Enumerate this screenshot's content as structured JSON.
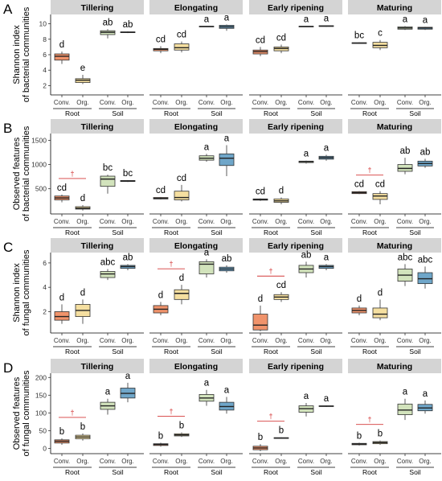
{
  "colors": {
    "root_conv": "#F0936B",
    "root_org": "#F5DFA0",
    "soil_conv": "#D2E3BC",
    "soil_org": "#6FA6C9",
    "strip_bg": "#D4D4D4",
    "dagger": "#D43A3A"
  },
  "chart_data": [
    {
      "type": "boxplot",
      "panel_label": "A",
      "ylabel": "Shannon index of bacterial communities",
      "ylim": [
        0.8,
        11.2
      ],
      "yticks": [
        2,
        4,
        6,
        8,
        10
      ],
      "ytick_labels": [
        "2",
        "4",
        "6",
        "8",
        "10"
      ],
      "facets": [
        {
          "title": "Tillering",
          "dagger": false,
          "boxes": [
            {
              "min": 4.8,
              "q1": 5.3,
              "median": 5.8,
              "q3": 6.1,
              "max": 6.4,
              "letter": "d"
            },
            {
              "min": 2.2,
              "q1": 2.4,
              "median": 2.7,
              "q3": 2.9,
              "max": 3.4,
              "letter": "e"
            },
            {
              "min": 8.1,
              "q1": 8.6,
              "median": 8.9,
              "q3": 9.1,
              "max": 9.3,
              "letter": "ab"
            },
            {
              "min": 8.8,
              "q1": 8.85,
              "median": 8.9,
              "q3": 8.95,
              "max": 9.0,
              "letter": "ab"
            }
          ]
        },
        {
          "title": "Elongating",
          "dagger": false,
          "boxes": [
            {
              "min": 6.2,
              "q1": 6.5,
              "median": 6.7,
              "q3": 6.8,
              "max": 7.1,
              "letter": "cd"
            },
            {
              "min": 6.3,
              "q1": 6.6,
              "median": 6.9,
              "q3": 7.4,
              "max": 7.7,
              "letter": "cd"
            },
            {
              "min": 9.6,
              "q1": 9.62,
              "median": 9.65,
              "q3": 9.68,
              "max": 9.7,
              "letter": "a"
            },
            {
              "min": 9.1,
              "q1": 9.4,
              "median": 9.6,
              "q3": 9.8,
              "max": 9.9,
              "letter": "a"
            }
          ]
        },
        {
          "title": "Early ripening",
          "dagger": false,
          "boxes": [
            {
              "min": 5.8,
              "q1": 6.1,
              "median": 6.4,
              "q3": 6.6,
              "max": 7.0,
              "letter": "cd"
            },
            {
              "min": 6.2,
              "q1": 6.5,
              "median": 6.8,
              "q3": 7.0,
              "max": 7.3,
              "letter": "cd"
            },
            {
              "min": 9.6,
              "q1": 9.62,
              "median": 9.65,
              "q3": 9.68,
              "max": 9.7,
              "letter": "a"
            },
            {
              "min": 9.6,
              "q1": 9.65,
              "median": 9.7,
              "q3": 9.75,
              "max": 9.8,
              "letter": "a"
            }
          ]
        },
        {
          "title": "Maturing",
          "dagger": false,
          "boxes": [
            {
              "min": 7.4,
              "q1": 7.45,
              "median": 7.5,
              "q3": 7.55,
              "max": 7.6,
              "letter": "bc"
            },
            {
              "min": 6.6,
              "q1": 6.9,
              "median": 7.2,
              "q3": 7.6,
              "max": 7.9,
              "letter": "c"
            },
            {
              "min": 9.2,
              "q1": 9.3,
              "median": 9.45,
              "q3": 9.6,
              "max": 9.7,
              "letter": "a"
            },
            {
              "min": 9.2,
              "q1": 9.3,
              "median": 9.45,
              "q3": 9.55,
              "max": 9.6,
              "letter": "a"
            }
          ]
        }
      ]
    },
    {
      "type": "boxplot",
      "panel_label": "B",
      "ylabel": "Observed features of bacterial communities",
      "ylim": [
        -20,
        1640
      ],
      "yticks": [
        500,
        1000,
        1500
      ],
      "ytick_labels": [
        "500",
        "1000",
        "1500"
      ],
      "facets": [
        {
          "title": "Tillering",
          "dagger": true,
          "boxes": [
            {
              "min": 220,
              "q1": 270,
              "median": 310,
              "q3": 350,
              "max": 380,
              "letter": "cd"
            },
            {
              "min": 50,
              "q1": 80,
              "median": 100,
              "q3": 130,
              "max": 160,
              "letter": "d"
            },
            {
              "min": 400,
              "q1": 550,
              "median": 700,
              "q3": 760,
              "max": 790,
              "letter": "bc"
            },
            {
              "min": 640,
              "q1": 650,
              "median": 660,
              "q3": 670,
              "max": 680,
              "letter": "bc"
            }
          ]
        },
        {
          "title": "Elongating",
          "dagger": false,
          "boxes": [
            {
              "min": 280,
              "q1": 290,
              "median": 300,
              "q3": 320,
              "max": 330,
              "letter": "cd"
            },
            {
              "min": 240,
              "q1": 270,
              "median": 320,
              "q3": 450,
              "max": 580,
              "letter": "cd"
            },
            {
              "min": 1060,
              "q1": 1090,
              "median": 1130,
              "q3": 1180,
              "max": 1220,
              "letter": "a"
            },
            {
              "min": 760,
              "q1": 980,
              "median": 1130,
              "q3": 1220,
              "max": 1400,
              "letter": "a"
            }
          ]
        },
        {
          "title": "Early ripening",
          "dagger": false,
          "boxes": [
            {
              "min": 250,
              "q1": 265,
              "median": 280,
              "q3": 290,
              "max": 300,
              "letter": "cd"
            },
            {
              "min": 180,
              "q1": 220,
              "median": 250,
              "q3": 290,
              "max": 320,
              "letter": "d"
            },
            {
              "min": 1020,
              "q1": 1040,
              "median": 1060,
              "q3": 1070,
              "max": 1080,
              "letter": "a"
            },
            {
              "min": 1080,
              "q1": 1110,
              "median": 1140,
              "q3": 1170,
              "max": 1200,
              "letter": "a"
            }
          ]
        },
        {
          "title": "Maturing",
          "dagger": true,
          "boxes": [
            {
              "min": 390,
              "q1": 400,
              "median": 420,
              "q3": 440,
              "max": 450,
              "letter": "cd"
            },
            {
              "min": 180,
              "q1": 280,
              "median": 350,
              "q3": 400,
              "max": 450,
              "letter": "cd"
            },
            {
              "min": 800,
              "q1": 860,
              "median": 920,
              "q3": 1000,
              "max": 1140,
              "letter": "ab"
            },
            {
              "min": 930,
              "q1": 970,
              "median": 1020,
              "q3": 1070,
              "max": 1120,
              "letter": "ab"
            }
          ]
        }
      ]
    },
    {
      "type": "boxplot",
      "panel_label": "C",
      "ylabel": "Shannon index of fungal communities",
      "ylim": [
        0.25,
        6.85
      ],
      "yticks": [
        2,
        4,
        6
      ],
      "ytick_labels": [
        "2",
        "4",
        "6"
      ],
      "facets": [
        {
          "title": "Tillering",
          "dagger": false,
          "boxes": [
            {
              "min": 1.0,
              "q1": 1.3,
              "median": 1.6,
              "q3": 2.0,
              "max": 2.6,
              "letter": "d"
            },
            {
              "min": 1.0,
              "q1": 1.6,
              "median": 2.1,
              "q3": 2.6,
              "max": 3.0,
              "letter": "d"
            },
            {
              "min": 4.6,
              "q1": 4.8,
              "median": 5.1,
              "q3": 5.3,
              "max": 5.5,
              "letter": "abc"
            },
            {
              "min": 5.4,
              "q1": 5.55,
              "median": 5.7,
              "q3": 5.8,
              "max": 5.9,
              "letter": "ab"
            }
          ]
        },
        {
          "title": "Elongating",
          "dagger": true,
          "boxes": [
            {
              "min": 1.7,
              "q1": 1.9,
              "median": 2.2,
              "q3": 2.5,
              "max": 2.8,
              "letter": "d"
            },
            {
              "min": 2.6,
              "q1": 3.0,
              "median": 3.5,
              "q3": 3.8,
              "max": 4.2,
              "letter": "d"
            },
            {
              "min": 4.8,
              "q1": 5.1,
              "median": 5.9,
              "q3": 6.1,
              "max": 6.3,
              "letter": "a"
            },
            {
              "min": 5.2,
              "q1": 5.35,
              "median": 5.5,
              "q3": 5.65,
              "max": 5.8,
              "letter": "ab"
            }
          ]
        },
        {
          "title": "Early ripening",
          "dagger": true,
          "boxes": [
            {
              "min": 0.4,
              "q1": 0.5,
              "median": 0.9,
              "q3": 1.8,
              "max": 2.5,
              "letter": "d"
            },
            {
              "min": 2.8,
              "q1": 3.0,
              "median": 3.2,
              "q3": 3.4,
              "max": 3.6,
              "letter": "cd"
            },
            {
              "min": 4.8,
              "q1": 5.2,
              "median": 5.5,
              "q3": 5.8,
              "max": 6.1,
              "letter": "ab"
            },
            {
              "min": 5.4,
              "q1": 5.55,
              "median": 5.7,
              "q3": 5.8,
              "max": 5.9,
              "letter": "a"
            }
          ]
        },
        {
          "title": "Maturing",
          "dagger": false,
          "boxes": [
            {
              "min": 1.7,
              "q1": 1.9,
              "median": 2.1,
              "q3": 2.3,
              "max": 2.5,
              "letter": "d"
            },
            {
              "min": 1.3,
              "q1": 1.5,
              "median": 1.8,
              "q3": 2.3,
              "max": 3.0,
              "letter": "d"
            },
            {
              "min": 4.1,
              "q1": 4.5,
              "median": 5.0,
              "q3": 5.5,
              "max": 5.9,
              "letter": "abc"
            },
            {
              "min": 3.9,
              "q1": 4.3,
              "median": 4.7,
              "q3": 5.2,
              "max": 5.7,
              "letter": "abc"
            }
          ]
        }
      ]
    },
    {
      "type": "boxplot",
      "panel_label": "D",
      "ylabel": "Observed features of fungal communities",
      "ylim": [
        -15,
        212
      ],
      "yticks": [
        0,
        50,
        100,
        150,
        200
      ],
      "ytick_labels": [
        "0",
        "50",
        "100",
        "150",
        "200"
      ],
      "facets": [
        {
          "title": "Tillering",
          "dagger": true,
          "boxes": [
            {
              "min": 10,
              "q1": 15,
              "median": 20,
              "q3": 24,
              "max": 28,
              "letter": "b"
            },
            {
              "min": 22,
              "q1": 27,
              "median": 32,
              "q3": 37,
              "max": 42,
              "letter": "b"
            },
            {
              "min": 95,
              "q1": 110,
              "median": 120,
              "q3": 130,
              "max": 140,
              "letter": "a"
            },
            {
              "min": 130,
              "q1": 142,
              "median": 155,
              "q3": 170,
              "max": 185,
              "letter": "a"
            }
          ]
        },
        {
          "title": "Elongating",
          "dagger": true,
          "boxes": [
            {
              "min": 5,
              "q1": 8,
              "median": 11,
              "q3": 13,
              "max": 16,
              "letter": "b"
            },
            {
              "min": 32,
              "q1": 35,
              "median": 38,
              "q3": 41,
              "max": 45,
              "letter": "b"
            },
            {
              "min": 120,
              "q1": 133,
              "median": 142,
              "q3": 152,
              "max": 165,
              "letter": "a"
            },
            {
              "min": 98,
              "q1": 108,
              "median": 118,
              "q3": 130,
              "max": 145,
              "letter": "a"
            }
          ]
        },
        {
          "title": "Early ripening",
          "dagger": true,
          "boxes": [
            {
              "min": -8,
              "q1": -4,
              "median": 1,
              "q3": 6,
              "max": 12,
              "letter": "b"
            },
            {
              "min": 27,
              "q1": 28,
              "median": 29,
              "q3": 30,
              "max": 31,
              "letter": "b"
            },
            {
              "min": 90,
              "q1": 102,
              "median": 112,
              "q3": 120,
              "max": 128,
              "letter": "a"
            },
            {
              "min": 117,
              "q1": 118,
              "median": 119,
              "q3": 120,
              "max": 121,
              "letter": "a"
            }
          ]
        },
        {
          "title": "Maturing",
          "dagger": true,
          "boxes": [
            {
              "min": 8,
              "q1": 10,
              "median": 12,
              "q3": 14,
              "max": 16,
              "letter": "b"
            },
            {
              "min": 10,
              "q1": 13,
              "median": 16,
              "q3": 19,
              "max": 22,
              "letter": "b"
            },
            {
              "min": 80,
              "q1": 95,
              "median": 108,
              "q3": 125,
              "max": 140,
              "letter": "a"
            },
            {
              "min": 98,
              "q1": 106,
              "median": 114,
              "q3": 124,
              "max": 135,
              "letter": "a"
            }
          ]
        }
      ]
    }
  ],
  "x_tick_labels": [
    "Conv.",
    "Org.",
    "Conv.",
    "Org."
  ],
  "group_labels": [
    "Root",
    "Soil"
  ],
  "dagger_symbol": "†"
}
